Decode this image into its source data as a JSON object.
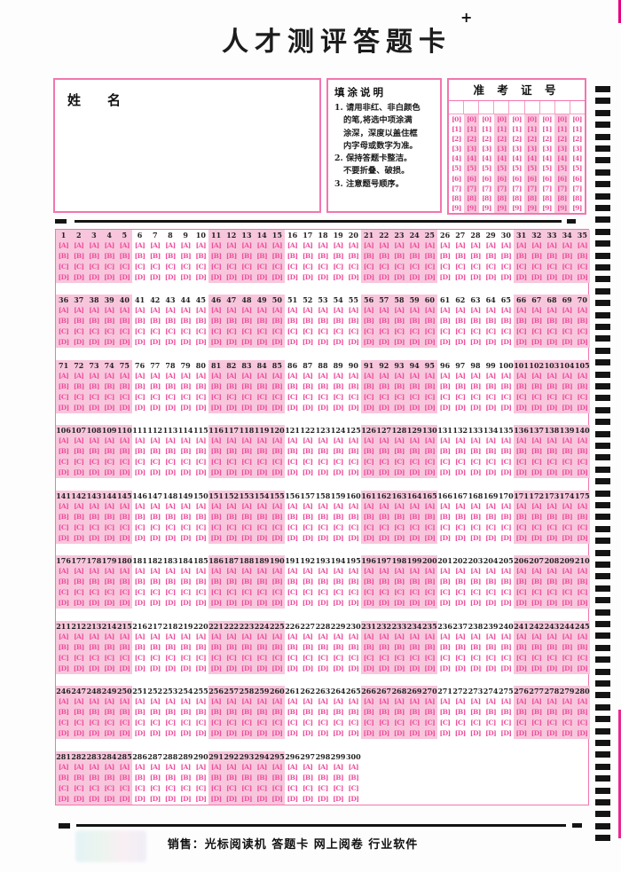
{
  "page": {
    "title": "人才测评答题卡",
    "registration_mark": "+",
    "footer": "销售：光标阅读机 答题卡 网上阅卷 行业软件"
  },
  "name_box": {
    "label_xing": "姓",
    "label_ming": "名"
  },
  "instructions": {
    "title": "填涂说明",
    "lines": [
      "1. 请用非红、非白颜色",
      "的笔,将选中项涂满",
      "涂深，深度以盖住框",
      "内字母或数字为准。",
      "2. 保持答题卡整洁。",
      "不要折叠、破损。",
      "3. 注意题号顺序。"
    ]
  },
  "exam_number": {
    "title": "准 考 证 号",
    "columns": 9,
    "digits": [
      "[0]",
      "[1]",
      "[2]",
      "[3]",
      "[4]",
      "[5]",
      "[6]",
      "[7]",
      "[8]",
      "[9]"
    ]
  },
  "answer_grid": {
    "options": [
      "[A]",
      "[B]",
      "[C]",
      "[D]"
    ],
    "group_size": 5,
    "total_questions": 300,
    "rows": [
      {
        "start": 1,
        "end": 35
      },
      {
        "start": 36,
        "end": 70
      },
      {
        "start": 71,
        "end": 105
      },
      {
        "start": 106,
        "end": 140
      },
      {
        "start": 141,
        "end": 175
      },
      {
        "start": 176,
        "end": 210
      },
      {
        "start": 211,
        "end": 245
      },
      {
        "start": 246,
        "end": 280
      },
      {
        "start": 281,
        "end": 300
      }
    ]
  },
  "timing_marks": {
    "right_count": 64
  },
  "colors": {
    "block_pink": "#f8c6dc",
    "ink_magenta": "#ee4f9d",
    "border_pink": "#f276ae",
    "text_dark": "#222222",
    "mark_black": "#141414"
  }
}
